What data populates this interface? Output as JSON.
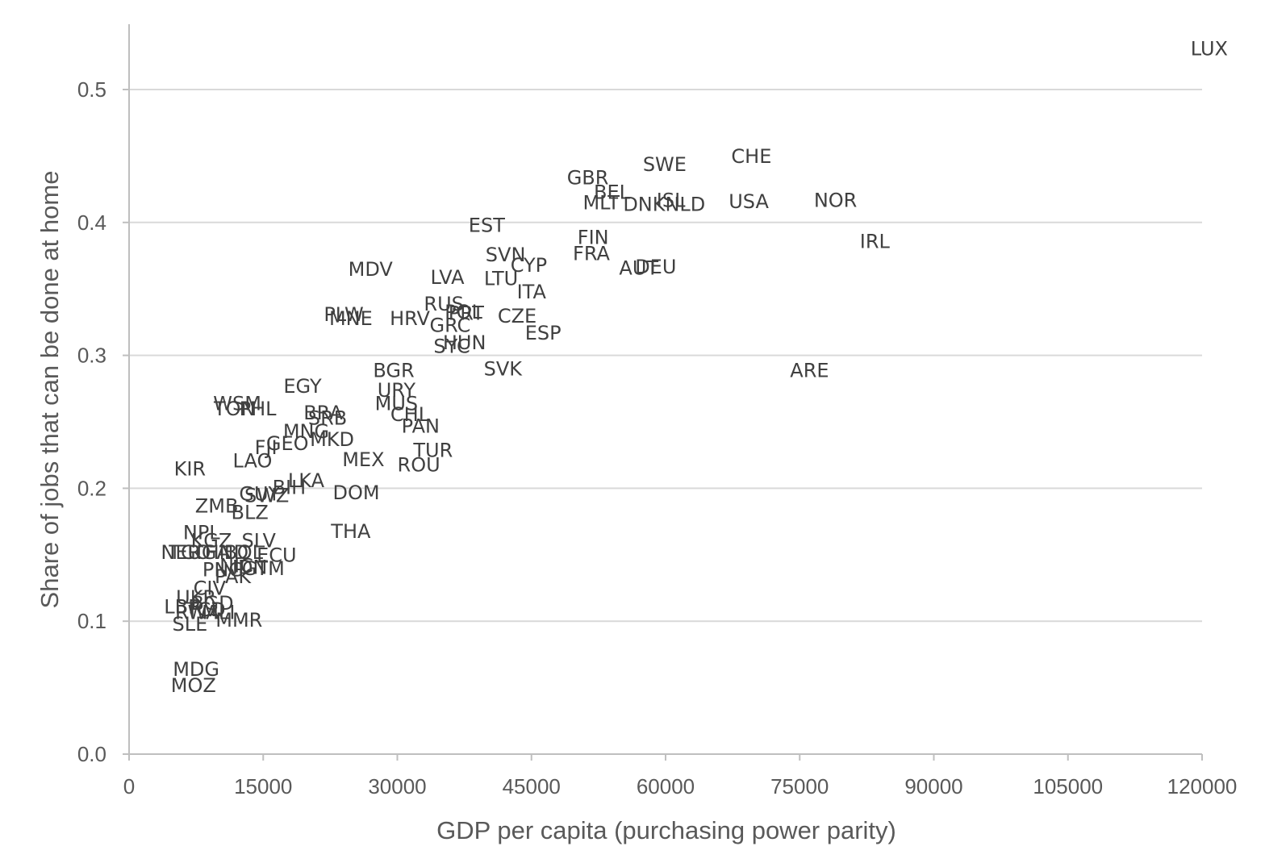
{
  "chart_data": {
    "type": "scatter",
    "title": "",
    "xlabel": "GDP per capita (purchasing power parity)",
    "ylabel": "Share of jobs that can be done at home",
    "xlim": [
      0,
      120000
    ],
    "ylim": [
      0,
      0.55
    ],
    "xticks": [
      0,
      15000,
      30000,
      45000,
      60000,
      75000,
      90000,
      105000,
      120000
    ],
    "xtick_labels": [
      "0",
      "15000",
      "30000",
      "45000",
      "60000",
      "75000",
      "90000",
      "105000",
      "120000"
    ],
    "yticks": [
      0,
      0.1,
      0.2,
      0.3,
      0.4,
      0.5
    ],
    "ytick_labels": [
      "0.0",
      "0.1",
      "0.2",
      "0.3",
      "0.4",
      "0.5"
    ],
    "grid": true,
    "legend": "none",
    "points": [
      {
        "label": "LUX",
        "x": 120800,
        "y": 0.53
      },
      {
        "label": "CHE",
        "x": 69600,
        "y": 0.449
      },
      {
        "label": "SWE",
        "x": 59900,
        "y": 0.443
      },
      {
        "label": "GBR",
        "x": 51300,
        "y": 0.433
      },
      {
        "label": "BEL",
        "x": 54000,
        "y": 0.422
      },
      {
        "label": "MLT",
        "x": 52800,
        "y": 0.414
      },
      {
        "label": "DNK",
        "x": 57600,
        "y": 0.413
      },
      {
        "label": "ISL",
        "x": 60600,
        "y": 0.416
      },
      {
        "label": "NLD",
        "x": 62200,
        "y": 0.413
      },
      {
        "label": "USA",
        "x": 69300,
        "y": 0.415
      },
      {
        "label": "NOR",
        "x": 79000,
        "y": 0.416
      },
      {
        "label": "IRL",
        "x": 83400,
        "y": 0.385
      },
      {
        "label": "EST",
        "x": 40000,
        "y": 0.397
      },
      {
        "label": "FIN",
        "x": 51900,
        "y": 0.388
      },
      {
        "label": "FRA",
        "x": 51700,
        "y": 0.376
      },
      {
        "label": "SVN",
        "x": 42100,
        "y": 0.375
      },
      {
        "label": "CYP",
        "x": 44700,
        "y": 0.367
      },
      {
        "label": "AUT",
        "x": 57000,
        "y": 0.365
      },
      {
        "label": "DEU",
        "x": 58900,
        "y": 0.366
      },
      {
        "label": "MDV",
        "x": 27000,
        "y": 0.364
      },
      {
        "label": "LVA",
        "x": 35600,
        "y": 0.358
      },
      {
        "label": "LTU",
        "x": 41600,
        "y": 0.357
      },
      {
        "label": "ITA",
        "x": 45000,
        "y": 0.347
      },
      {
        "label": "RUS",
        "x": 35200,
        "y": 0.338
      },
      {
        "label": "POL",
        "x": 37400,
        "y": 0.332
      },
      {
        "label": "PRT",
        "x": 37700,
        "y": 0.331
      },
      {
        "label": "CZE",
        "x": 43400,
        "y": 0.329
      },
      {
        "label": "PLW",
        "x": 24000,
        "y": 0.33
      },
      {
        "label": "MNE",
        "x": 24800,
        "y": 0.327
      },
      {
        "label": "HRV",
        "x": 31400,
        "y": 0.327
      },
      {
        "label": "GRC",
        "x": 35900,
        "y": 0.322
      },
      {
        "label": "ESP",
        "x": 46300,
        "y": 0.316
      },
      {
        "label": "HUN",
        "x": 37500,
        "y": 0.309
      },
      {
        "label": "SYC",
        "x": 36100,
        "y": 0.306
      },
      {
        "label": "SVK",
        "x": 41800,
        "y": 0.289
      },
      {
        "label": "ARE",
        "x": 76100,
        "y": 0.288
      },
      {
        "label": "BGR",
        "x": 29600,
        "y": 0.288
      },
      {
        "label": "EGY",
        "x": 19400,
        "y": 0.276
      },
      {
        "label": "URY",
        "x": 29900,
        "y": 0.273
      },
      {
        "label": "MUS",
        "x": 29900,
        "y": 0.263
      },
      {
        "label": "CHL",
        "x": 31400,
        "y": 0.255
      },
      {
        "label": "WSM",
        "x": 12100,
        "y": 0.263
      },
      {
        "label": "TON",
        "x": 11800,
        "y": 0.259
      },
      {
        "label": "PHL",
        "x": 14400,
        "y": 0.259
      },
      {
        "label": "BRA",
        "x": 21700,
        "y": 0.256
      },
      {
        "label": "SRB",
        "x": 22200,
        "y": 0.252
      },
      {
        "label": "PAN",
        "x": 32600,
        "y": 0.246
      },
      {
        "label": "MNG",
        "x": 19800,
        "y": 0.242
      },
      {
        "label": "MKD",
        "x": 22700,
        "y": 0.236
      },
      {
        "label": "GEO",
        "x": 17700,
        "y": 0.233
      },
      {
        "label": "FJI",
        "x": 15300,
        "y": 0.23
      },
      {
        "label": "TUR",
        "x": 34000,
        "y": 0.228
      },
      {
        "label": "MEX",
        "x": 26200,
        "y": 0.221
      },
      {
        "label": "LAO",
        "x": 13800,
        "y": 0.22
      },
      {
        "label": "ROU",
        "x": 32400,
        "y": 0.217
      },
      {
        "label": "KIR",
        "x": 6800,
        "y": 0.214
      },
      {
        "label": "LKA",
        "x": 19800,
        "y": 0.205
      },
      {
        "label": "BIH",
        "x": 17900,
        "y": 0.2
      },
      {
        "label": "DOM",
        "x": 25400,
        "y": 0.196
      },
      {
        "label": "GUY",
        "x": 14600,
        "y": 0.195
      },
      {
        "label": "SWZ",
        "x": 15400,
        "y": 0.194
      },
      {
        "label": "ZMB",
        "x": 9800,
        "y": 0.186
      },
      {
        "label": "BLZ",
        "x": 13500,
        "y": 0.181
      },
      {
        "label": "THA",
        "x": 24800,
        "y": 0.167
      },
      {
        "label": "NPL",
        "x": 8100,
        "y": 0.166
      },
      {
        "label": "KGZ",
        "x": 9200,
        "y": 0.16
      },
      {
        "label": "SLV",
        "x": 14500,
        "y": 0.16
      },
      {
        "label": "NER",
        "x": 5800,
        "y": 0.151
      },
      {
        "label": "TGO",
        "x": 6800,
        "y": 0.151
      },
      {
        "label": "UGA",
        "x": 8900,
        "y": 0.151
      },
      {
        "label": "HND",
        "x": 10900,
        "y": 0.151
      },
      {
        "label": "BOL",
        "x": 12800,
        "y": 0.151
      },
      {
        "label": "ECU",
        "x": 16500,
        "y": 0.149
      },
      {
        "label": "NIC",
        "x": 12000,
        "y": 0.141
      },
      {
        "label": "IDN",
        "x": 13500,
        "y": 0.14
      },
      {
        "label": "GTM",
        "x": 15000,
        "y": 0.139
      },
      {
        "label": "PNG",
        "x": 10500,
        "y": 0.138
      },
      {
        "label": "PAK",
        "x": 11600,
        "y": 0.133
      },
      {
        "label": "CIV",
        "x": 9000,
        "y": 0.124
      },
      {
        "label": "UKR",
        "x": 7500,
        "y": 0.117
      },
      {
        "label": "BGD",
        "x": 9300,
        "y": 0.113
      },
      {
        "label": "LBR",
        "x": 6000,
        "y": 0.11
      },
      {
        "label": "TCD",
        "x": 8600,
        "y": 0.108
      },
      {
        "label": "RWA",
        "x": 7600,
        "y": 0.106
      },
      {
        "label": "MLI",
        "x": 10000,
        "y": 0.106
      },
      {
        "label": "MMR",
        "x": 12300,
        "y": 0.1
      },
      {
        "label": "SLE",
        "x": 6800,
        "y": 0.097
      },
      {
        "label": "MDG",
        "x": 7500,
        "y": 0.063
      },
      {
        "label": "MOZ",
        "x": 7200,
        "y": 0.051
      }
    ]
  }
}
